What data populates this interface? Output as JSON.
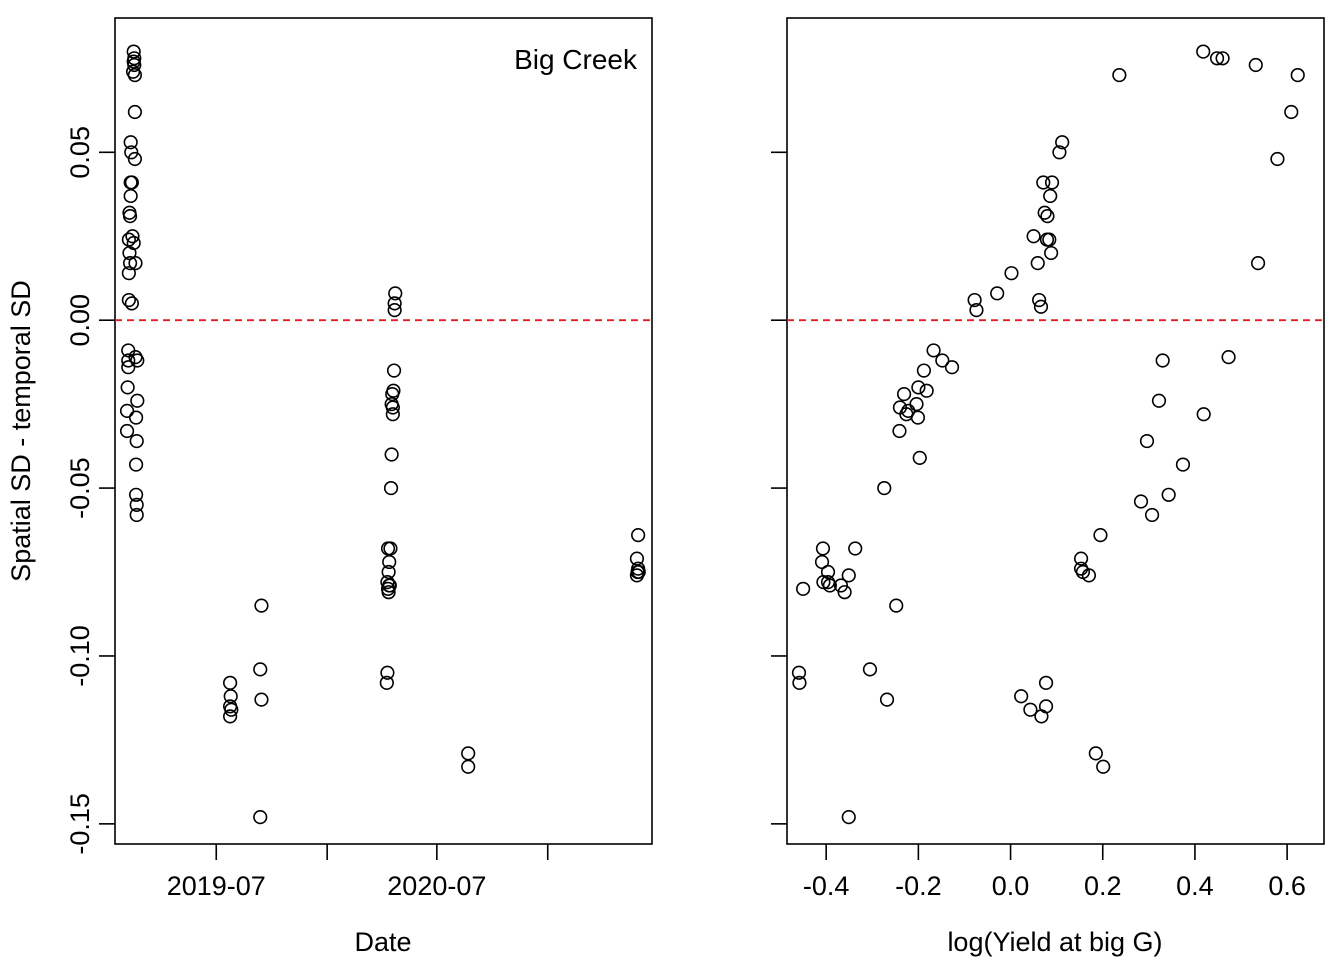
{
  "chart_data": [
    {
      "type": "scatter",
      "panel_label": "Big Creek",
      "xlabel": "Date",
      "ylabel": "Spatial SD - temporal SD",
      "x_ticks": [
        "2019-07",
        "2020-07"
      ],
      "x_tick_marks": [
        "2019-07-01",
        "2020-01-01",
        "2020-07-01",
        "2021-01-01"
      ],
      "y_ticks": [
        "-0.15",
        "-0.10",
        "-0.05",
        "0.00",
        "0.05"
      ],
      "xlim": [
        "2019-01-14",
        "2021-06-23"
      ],
      "ylim": [
        -0.156,
        0.09
      ],
      "reference_line": {
        "y": 0,
        "style": "dashed",
        "color": "#e41a1c"
      },
      "points": [
        [
          "2019-02-14",
          0.08
        ],
        [
          "2019-02-15",
          0.078
        ],
        [
          "2019-02-14",
          0.077
        ],
        [
          "2019-02-15",
          0.076
        ],
        [
          "2019-02-16",
          0.073
        ],
        [
          "2019-02-13",
          0.074
        ],
        [
          "2019-02-16",
          0.062
        ],
        [
          "2019-02-16",
          0.048
        ],
        [
          "2019-02-09",
          0.053
        ],
        [
          "2019-02-10",
          0.05
        ],
        [
          "2019-02-09",
          0.041
        ],
        [
          "2019-02-11",
          0.041
        ],
        [
          "2019-02-09",
          0.037
        ],
        [
          "2019-02-07",
          0.032
        ],
        [
          "2019-02-08",
          0.031
        ],
        [
          "2019-02-12",
          0.025
        ],
        [
          "2019-02-06",
          0.024
        ],
        [
          "2019-02-14",
          0.023
        ],
        [
          "2019-02-07",
          0.02
        ],
        [
          "2019-02-17",
          0.017
        ],
        [
          "2019-02-08",
          0.017
        ],
        [
          "2019-02-06",
          0.014
        ],
        [
          "2019-02-06",
          0.006
        ],
        [
          "2019-02-11",
          0.005
        ],
        [
          "2019-02-05",
          -0.009
        ],
        [
          "2019-02-05",
          -0.012
        ],
        [
          "2019-02-05",
          -0.014
        ],
        [
          "2019-02-17",
          -0.011
        ],
        [
          "2019-02-20",
          -0.012
        ],
        [
          "2019-02-04",
          -0.02
        ],
        [
          "2019-02-20",
          -0.024
        ],
        [
          "2019-02-03",
          -0.027
        ],
        [
          "2019-02-18",
          -0.029
        ],
        [
          "2019-02-03",
          -0.033
        ],
        [
          "2019-02-19",
          -0.036
        ],
        [
          "2019-02-18",
          -0.043
        ],
        [
          "2019-02-18",
          -0.052
        ],
        [
          "2019-02-19",
          -0.055
        ],
        [
          "2019-02-19",
          -0.058
        ],
        [
          "2019-07-24",
          -0.108
        ],
        [
          "2019-07-25",
          -0.112
        ],
        [
          "2019-07-24",
          -0.115
        ],
        [
          "2019-07-26",
          -0.116
        ],
        [
          "2019-07-24",
          -0.118
        ],
        [
          "2019-09-14",
          -0.085
        ],
        [
          "2019-09-12",
          -0.104
        ],
        [
          "2019-09-14",
          -0.113
        ],
        [
          "2019-09-12",
          -0.148
        ],
        [
          "2020-04-23",
          0.008
        ],
        [
          "2020-04-22",
          0.005
        ],
        [
          "2020-04-22",
          0.003
        ],
        [
          "2020-04-21",
          -0.015
        ],
        [
          "2020-04-20",
          -0.021
        ],
        [
          "2020-04-18",
          -0.022
        ],
        [
          "2020-04-17",
          -0.025
        ],
        [
          "2020-04-19",
          -0.026
        ],
        [
          "2020-04-19",
          -0.028
        ],
        [
          "2020-04-17",
          -0.04
        ],
        [
          "2020-04-16",
          -0.05
        ],
        [
          "2020-04-11",
          -0.068
        ],
        [
          "2020-04-15",
          -0.068
        ],
        [
          "2020-04-13",
          -0.072
        ],
        [
          "2020-04-12",
          -0.075
        ],
        [
          "2020-04-10",
          -0.078
        ],
        [
          "2020-04-14",
          -0.079
        ],
        [
          "2020-04-13",
          -0.079
        ],
        [
          "2020-04-11",
          -0.08
        ],
        [
          "2020-04-12",
          -0.081
        ],
        [
          "2020-04-10",
          -0.105
        ],
        [
          "2020-04-09",
          -0.108
        ],
        [
          "2020-08-22",
          -0.129
        ],
        [
          "2020-08-22",
          -0.133
        ],
        [
          "2021-05-31",
          -0.064
        ],
        [
          "2021-05-29",
          -0.071
        ],
        [
          "2021-05-31",
          -0.074
        ],
        [
          "2021-06-01",
          -0.075
        ],
        [
          "2021-05-30",
          -0.075
        ],
        [
          "2021-05-29",
          -0.076
        ]
      ]
    },
    {
      "type": "scatter",
      "xlabel": "log(Yield at big G)",
      "ylabel": "",
      "x_ticks": [
        "-0.4",
        "-0.2",
        "0.0",
        "0.2",
        "0.4",
        "0.6"
      ],
      "y_ticks": [
        "-0.15",
        "-0.10",
        "-0.05",
        "0.00",
        "0.05"
      ],
      "xlim": [
        -0.485,
        0.68
      ],
      "ylim": [
        -0.156,
        0.09
      ],
      "reference_line": {
        "y": 0,
        "style": "dashed",
        "color": "#e41a1c"
      },
      "points": [
        [
          0.418,
          0.08
        ],
        [
          0.448,
          0.078
        ],
        [
          0.46,
          0.078
        ],
        [
          0.532,
          0.076
        ],
        [
          0.236,
          0.073
        ],
        [
          0.623,
          0.073
        ],
        [
          0.609,
          0.062
        ],
        [
          0.579,
          0.048
        ],
        [
          0.537,
          0.017
        ],
        [
          0.112,
          0.053
        ],
        [
          0.106,
          0.05
        ],
        [
          0.071,
          0.041
        ],
        [
          0.09,
          0.041
        ],
        [
          0.086,
          0.037
        ],
        [
          0.074,
          0.032
        ],
        [
          0.08,
          0.031
        ],
        [
          0.05,
          0.025
        ],
        [
          0.079,
          0.024
        ],
        [
          0.084,
          0.024
        ],
        [
          0.088,
          0.02
        ],
        [
          0.059,
          0.017
        ],
        [
          0.002,
          0.014
        ],
        [
          -0.029,
          0.008
        ],
        [
          -0.078,
          0.006
        ],
        [
          -0.074,
          0.003
        ],
        [
          0.062,
          0.006
        ],
        [
          0.066,
          0.004
        ],
        [
          -0.167,
          -0.009
        ],
        [
          -0.148,
          -0.012
        ],
        [
          -0.127,
          -0.014
        ],
        [
          -0.188,
          -0.015
        ],
        [
          -0.182,
          -0.021
        ],
        [
          -0.2,
          -0.02
        ],
        [
          -0.231,
          -0.022
        ],
        [
          -0.204,
          -0.025
        ],
        [
          -0.24,
          -0.026
        ],
        [
          -0.226,
          -0.028
        ],
        [
          -0.222,
          -0.027
        ],
        [
          -0.201,
          -0.029
        ],
        [
          -0.241,
          -0.033
        ],
        [
          -0.197,
          -0.041
        ],
        [
          -0.274,
          -0.05
        ],
        [
          0.473,
          -0.011
        ],
        [
          0.33,
          -0.012
        ],
        [
          0.322,
          -0.024
        ],
        [
          0.419,
          -0.028
        ],
        [
          0.296,
          -0.036
        ],
        [
          0.374,
          -0.043
        ],
        [
          0.343,
          -0.052
        ],
        [
          0.283,
          -0.054
        ],
        [
          0.307,
          -0.058
        ],
        [
          0.195,
          -0.064
        ],
        [
          0.153,
          -0.071
        ],
        [
          0.153,
          -0.074
        ],
        [
          0.157,
          -0.075
        ],
        [
          0.17,
          -0.076
        ],
        [
          -0.407,
          -0.068
        ],
        [
          -0.337,
          -0.068
        ],
        [
          -0.409,
          -0.072
        ],
        [
          -0.396,
          -0.075
        ],
        [
          -0.351,
          -0.076
        ],
        [
          -0.45,
          -0.08
        ],
        [
          -0.406,
          -0.078
        ],
        [
          -0.392,
          -0.079
        ],
        [
          -0.396,
          -0.078
        ],
        [
          -0.368,
          -0.079
        ],
        [
          -0.36,
          -0.081
        ],
        [
          -0.248,
          -0.085
        ],
        [
          -0.459,
          -0.105
        ],
        [
          -0.458,
          -0.108
        ],
        [
          -0.305,
          -0.104
        ],
        [
          -0.268,
          -0.113
        ],
        [
          -0.351,
          -0.148
        ],
        [
          0.023,
          -0.112
        ],
        [
          0.043,
          -0.116
        ],
        [
          0.067,
          -0.118
        ],
        [
          0.077,
          -0.115
        ],
        [
          0.077,
          -0.108
        ],
        [
          0.185,
          -0.129
        ],
        [
          0.201,
          -0.133
        ]
      ]
    }
  ]
}
